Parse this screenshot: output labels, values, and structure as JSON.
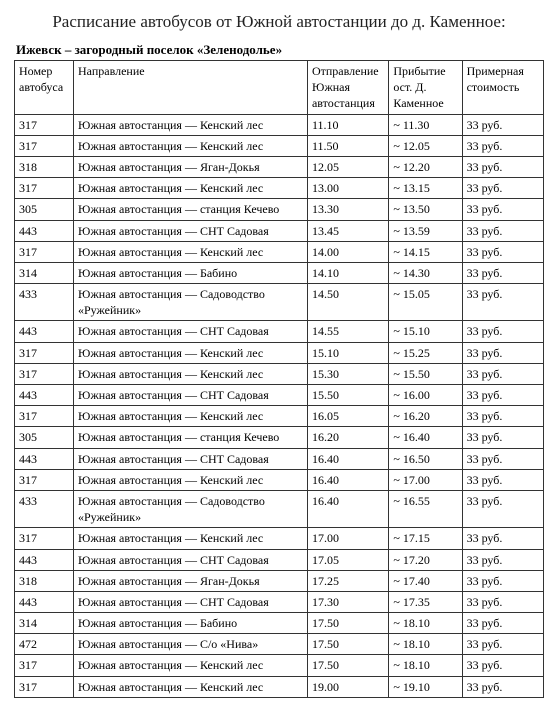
{
  "title": "Расписание автобусов от Южной автостанции до д. Каменное:",
  "subtitle": "Ижевск – загородный поселок «Зеленодолье»",
  "table": {
    "columns": [
      "Номер автобуса",
      "Направление",
      "Отправление Южная автостанция",
      "Прибытие ост. Д. Каменное",
      "Примерная стоимость"
    ],
    "rows": [
      [
        "317",
        "Южная автостанция — Кенский лес",
        "11.10",
        "~ 11.30",
        "33 руб."
      ],
      [
        "317",
        "Южная автостанция — Кенский лес",
        "11.50",
        "~ 12.05",
        "33 руб."
      ],
      [
        "318",
        "Южная автостанция — Яган-Докья",
        "12.05",
        "~ 12.20",
        "33 руб."
      ],
      [
        "317",
        "Южная автостанция — Кенский лес",
        "13.00",
        "~ 13.15",
        "33 руб."
      ],
      [
        "305",
        "Южная автостанция — станция Кечево",
        "13.30",
        "~ 13.50",
        "33 руб."
      ],
      [
        "443",
        "Южная автостанция — СНТ Садовая",
        "13.45",
        "~ 13.59",
        "33 руб."
      ],
      [
        "317",
        "Южная автостанция — Кенский лес",
        "14.00",
        "~ 14.15",
        "33 руб."
      ],
      [
        "314",
        "Южная автостанция — Бабино",
        "14.10",
        "~ 14.30",
        "33 руб."
      ],
      [
        "433",
        "Южная автостанция — Садоводство «Ружейник»",
        "14.50",
        "~ 15.05",
        "33 руб."
      ],
      [
        "443",
        "Южная автостанция — СНТ Садовая",
        "14.55",
        "~ 15.10",
        "33 руб."
      ],
      [
        "317",
        "Южная автостанция — Кенский лес",
        "15.10",
        "~ 15.25",
        "33 руб."
      ],
      [
        "317",
        "Южная автостанция — Кенский лес",
        "15.30",
        "~ 15.50",
        "33 руб."
      ],
      [
        "443",
        "Южная автостанция — СНТ Садовая",
        "15.50",
        "~ 16.00",
        "33 руб."
      ],
      [
        "317",
        "Южная автостанция — Кенский лес",
        "16.05",
        "~ 16.20",
        "33 руб."
      ],
      [
        "305",
        "Южная автостанция — станция Кечево",
        "16.20",
        "~ 16.40",
        "33 руб."
      ],
      [
        "443",
        "Южная автостанция — СНТ Садовая",
        "16.40",
        "~ 16.50",
        "33 руб."
      ],
      [
        "317",
        "Южная автостанция — Кенский лес",
        "16.40",
        "~ 17.00",
        "33 руб."
      ],
      [
        "433",
        "Южная автостанция — Садоводство «Ружейник»",
        "16.40",
        "~ 16.55",
        "33 руб."
      ],
      [
        "317",
        "Южная автостанция — Кенский лес",
        "17.00",
        "~ 17.15",
        "33 руб."
      ],
      [
        "443",
        "Южная автостанция — СНТ Садовая",
        "17.05",
        "~ 17.20",
        "33 руб."
      ],
      [
        "318",
        "Южная автостанция — Яган-Докья",
        "17.25",
        "~ 17.40",
        "33 руб."
      ],
      [
        "443",
        "Южная автостанция — СНТ Садовая",
        "17.30",
        "~ 17.35",
        "33 руб."
      ],
      [
        "314",
        "Южная автостанция — Бабино",
        "17.50",
        "~ 18.10",
        "33 руб."
      ],
      [
        "472",
        "Южная автостанция — С/о «Нива»",
        "17.50",
        "~ 18.10",
        "33 руб."
      ],
      [
        "317",
        "Южная автостанция — Кенский лес",
        "17.50",
        "~ 18.10",
        "33 руб."
      ],
      [
        "317",
        "Южная автостанция — Кенский лес",
        "19.00",
        "~ 19.10",
        "33 руб."
      ]
    ]
  }
}
